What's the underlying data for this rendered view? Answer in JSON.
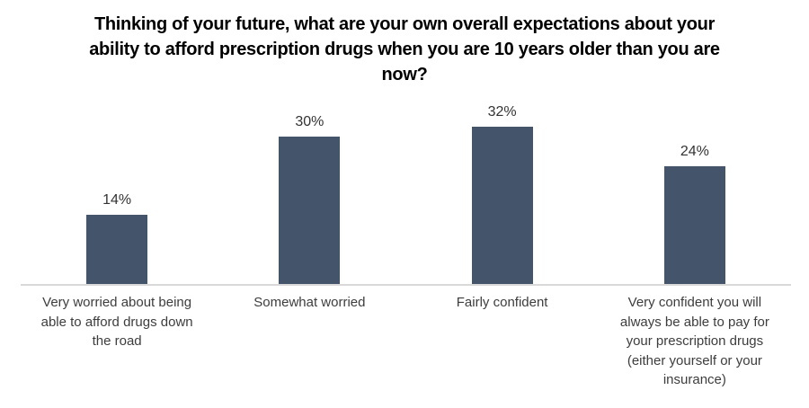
{
  "chart_data": {
    "type": "bar",
    "title": "Thinking of your future, what are your own overall expectations about your\nability to afford prescription drugs when you are 10 years older than you are\nnow?",
    "categories": [
      "Very worried about being\nable to afford drugs down\nthe road",
      "Somewhat worried",
      "Fairly confident",
      "Very confident you will\nalways be able to pay for\nyour prescription drugs\n(either yourself or your\ninsurance)"
    ],
    "values": [
      14,
      30,
      32,
      24
    ],
    "value_labels": [
      "14%",
      "30%",
      "32%",
      "24%"
    ],
    "xlabel": "",
    "ylabel": "",
    "ylim": [
      0,
      40
    ],
    "y_axis_visible": false,
    "gridlines": false,
    "legend": "none",
    "bar_color": "#44546a",
    "axis_line_color": "#d9d9d9",
    "label_text_color": "#3d3d3d",
    "title_color": "#000000"
  }
}
